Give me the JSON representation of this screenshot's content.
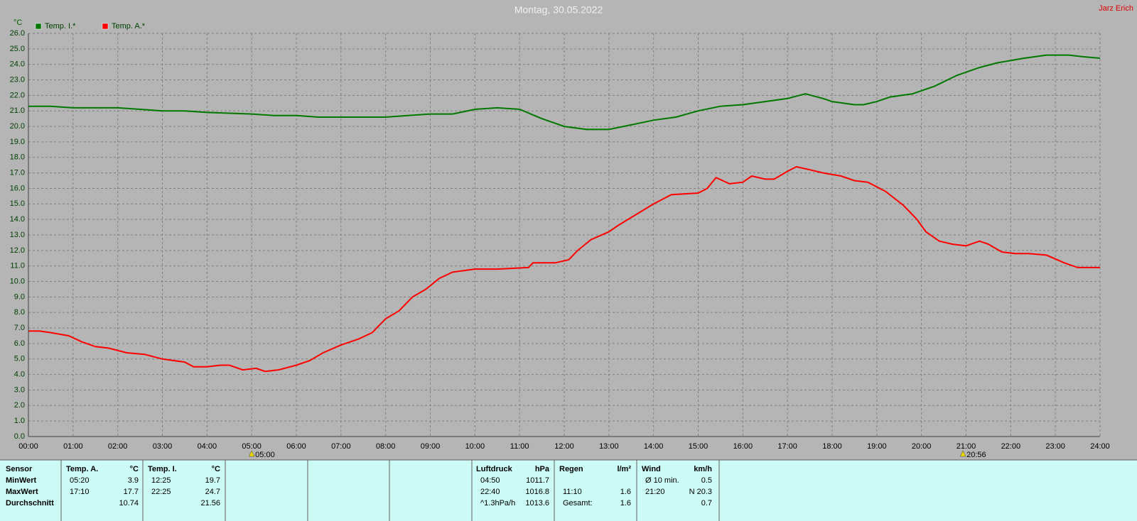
{
  "chart_data": {
    "type": "line",
    "title": "Montag, 30.05.2022",
    "author": "Jarz Erich",
    "ylabel": "°C",
    "xlim": [
      0,
      24
    ],
    "ylim": [
      0,
      26
    ],
    "grid": true,
    "xticks": [
      {
        "value": 0,
        "label": "00:00"
      },
      {
        "value": 1,
        "label": "01:00"
      },
      {
        "value": 2,
        "label": "02:00"
      },
      {
        "value": 3,
        "label": "03:00"
      },
      {
        "value": 4,
        "label": "04:00"
      },
      {
        "value": 5,
        "label": "05:00"
      },
      {
        "value": 6,
        "label": "06:00"
      },
      {
        "value": 7,
        "label": "07:00"
      },
      {
        "value": 8,
        "label": "08:00"
      },
      {
        "value": 9,
        "label": "09:00"
      },
      {
        "value": 10,
        "label": "10:00"
      },
      {
        "value": 11,
        "label": "11:00"
      },
      {
        "value": 12,
        "label": "12:00"
      },
      {
        "value": 13,
        "label": "13:00"
      },
      {
        "value": 14,
        "label": "14:00"
      },
      {
        "value": 15,
        "label": "15:00"
      },
      {
        "value": 16,
        "label": "16:00"
      },
      {
        "value": 17,
        "label": "17:00"
      },
      {
        "value": 18,
        "label": "18:00"
      },
      {
        "value": 19,
        "label": "19:00"
      },
      {
        "value": 20,
        "label": "20:00"
      },
      {
        "value": 21,
        "label": "21:00"
      },
      {
        "value": 22,
        "label": "22:00"
      },
      {
        "value": 23,
        "label": "23:00"
      },
      {
        "value": 24,
        "label": "24:00"
      }
    ],
    "yticks": [
      {
        "value": 0,
        "label": "0.0"
      },
      {
        "value": 1,
        "label": "1.0"
      },
      {
        "value": 2,
        "label": "2.0"
      },
      {
        "value": 3,
        "label": "3.0"
      },
      {
        "value": 4,
        "label": "4.0"
      },
      {
        "value": 5,
        "label": "5.0"
      },
      {
        "value": 6,
        "label": "6.0"
      },
      {
        "value": 7,
        "label": "7.0"
      },
      {
        "value": 8,
        "label": "8.0"
      },
      {
        "value": 9,
        "label": "9.0"
      },
      {
        "value": 10,
        "label": "10.0"
      },
      {
        "value": 11,
        "label": "11.0"
      },
      {
        "value": 12,
        "label": "12.0"
      },
      {
        "value": 13,
        "label": "13.0"
      },
      {
        "value": 14,
        "label": "14.0"
      },
      {
        "value": 15,
        "label": "15.0"
      },
      {
        "value": 16,
        "label": "16.0"
      },
      {
        "value": 17,
        "label": "17.0"
      },
      {
        "value": 18,
        "label": "18.0"
      },
      {
        "value": 19,
        "label": "19.0"
      },
      {
        "value": 20,
        "label": "20.0"
      },
      {
        "value": 21,
        "label": "21.0"
      },
      {
        "value": 22,
        "label": "22.0"
      },
      {
        "value": 23,
        "label": "23.0"
      },
      {
        "value": 24,
        "label": "24.0"
      },
      {
        "value": 25,
        "label": "25.0"
      },
      {
        "value": 26,
        "label": "26.0"
      }
    ],
    "annotations": [
      {
        "x": 5,
        "label": "05:00"
      },
      {
        "x": 20.93,
        "label": "20:56"
      }
    ],
    "series": [
      {
        "name": "Temp. I.*",
        "color": "#007800",
        "x": [
          0,
          0.5,
          1,
          2,
          2.5,
          3,
          3.5,
          4,
          5,
          5.5,
          6,
          6.5,
          7,
          8,
          8.5,
          9,
          9.5,
          10,
          10.5,
          11,
          11.5,
          12,
          12.5,
          13,
          13.5,
          14,
          14.5,
          15,
          15.5,
          16,
          16.5,
          17,
          17.4,
          17.8,
          18,
          18.5,
          18.7,
          19,
          19.3,
          19.8,
          20.3,
          20.8,
          21.3,
          21.7,
          22.3,
          22.8,
          23.3,
          23.6,
          24
        ],
        "values": [
          21.3,
          21.3,
          21.2,
          21.2,
          21.1,
          21.0,
          21.0,
          20.9,
          20.8,
          20.7,
          20.7,
          20.6,
          20.6,
          20.6,
          20.7,
          20.8,
          20.8,
          21.1,
          21.2,
          21.1,
          20.5,
          20.0,
          19.8,
          19.8,
          20.1,
          20.4,
          20.6,
          21.0,
          21.3,
          21.4,
          21.6,
          21.8,
          22.1,
          21.8,
          21.6,
          21.4,
          21.4,
          21.6,
          21.9,
          22.1,
          22.6,
          23.3,
          23.8,
          24.1,
          24.4,
          24.6,
          24.6,
          24.5,
          24.4
        ]
      },
      {
        "name": "Temp. A.*",
        "color": "#ff0000",
        "x": [
          0,
          0.25,
          0.5,
          0.9,
          1.2,
          1.5,
          1.8,
          2.2,
          2.6,
          3,
          3.5,
          3.7,
          4,
          4.3,
          4.5,
          4.8,
          5.1,
          5.3,
          5.6,
          6,
          6.3,
          6.6,
          7,
          7.4,
          7.7,
          8,
          8.3,
          8.6,
          8.9,
          9.2,
          9.5,
          10,
          10.5,
          11.2,
          11.3,
          11.6,
          11.8,
          12.1,
          12.3,
          12.6,
          13,
          13.2,
          13.6,
          14,
          14.4,
          15,
          15.2,
          15.4,
          15.7,
          16,
          16.2,
          16.5,
          16.7,
          17,
          17.2,
          17.5,
          17.8,
          18.2,
          18.5,
          18.8,
          19.2,
          19.6,
          19.9,
          20.1,
          20.4,
          20.7,
          21,
          21.3,
          21.5,
          21.8,
          22.1,
          22.4,
          22.8,
          23.2,
          23.5,
          24
        ],
        "values": [
          6.8,
          6.8,
          6.7,
          6.5,
          6.1,
          5.8,
          5.7,
          5.4,
          5.3,
          5.0,
          4.8,
          4.5,
          4.5,
          4.6,
          4.6,
          4.3,
          4.4,
          4.2,
          4.3,
          4.6,
          4.9,
          5.4,
          5.9,
          6.3,
          6.7,
          7.6,
          8.1,
          9.0,
          9.5,
          10.2,
          10.6,
          10.8,
          10.8,
          10.9,
          11.2,
          11.2,
          11.2,
          11.4,
          12.0,
          12.7,
          13.2,
          13.6,
          14.3,
          15.0,
          15.6,
          15.7,
          16.0,
          16.7,
          16.3,
          16.4,
          16.8,
          16.6,
          16.6,
          17.1,
          17.4,
          17.2,
          17.0,
          16.8,
          16.5,
          16.4,
          15.8,
          14.9,
          14.0,
          13.2,
          12.6,
          12.4,
          12.3,
          12.6,
          12.4,
          11.9,
          11.8,
          11.8,
          11.7,
          11.2,
          10.9,
          10.9
        ]
      }
    ]
  },
  "stats": {
    "row_labels": [
      "Sensor",
      "MinWert",
      "MaxWert",
      "Durchschnitt"
    ],
    "groups": [
      {
        "header": "Temp. A.",
        "unit": "°C",
        "rows": [
          {
            "time": "05:20",
            "value": 3.9
          },
          {
            "time": "17:10",
            "value": 17.7
          },
          {
            "value": 10.74
          }
        ]
      },
      {
        "header": "Temp. I.",
        "unit": "°C",
        "rows": [
          {
            "time": "12:25",
            "value": 19.7
          },
          {
            "time": "22:25",
            "value": 24.7
          },
          {
            "value": 21.56
          }
        ]
      },
      {
        "header": "Luftdruck",
        "unit": "hPa",
        "rows": [
          {
            "time": "04:50",
            "value": 1011.7
          },
          {
            "time": "22:40",
            "value": 1016.8
          },
          {
            "time": "^1.3hPa/h",
            "value": 1013.6
          }
        ]
      },
      {
        "header": "Regen",
        "unit": "l/m²",
        "rows": [
          {},
          {
            "time": "11:10",
            "value": 1.6
          },
          {
            "time": "Gesamt:",
            "value": 1.6
          }
        ]
      },
      {
        "header": "Wind",
        "unit": "km/h",
        "rows": [
          {
            "time": "Ø 10 min.",
            "value": 0.5
          },
          {
            "time": "21:20",
            "value": "N 20.3"
          },
          {
            "value": 0.7
          }
        ]
      }
    ]
  }
}
